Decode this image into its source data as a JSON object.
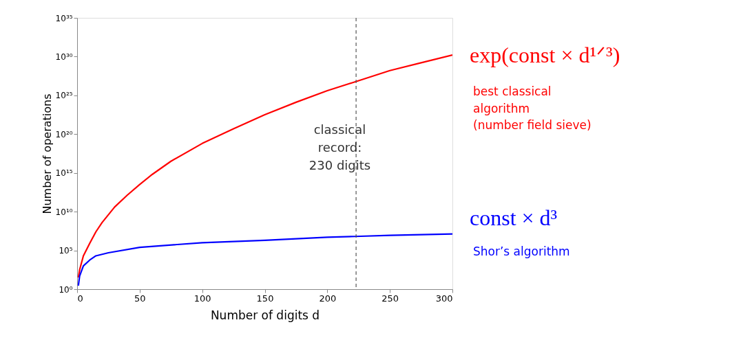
{
  "chart_data": {
    "type": "line",
    "xlabel": "Number of digits d",
    "ylabel": "Number of operations",
    "log": "y",
    "grid": false,
    "marker": "none",
    "line_style": "solid",
    "xlim": [
      0,
      300
    ],
    "xticks": [
      0,
      50,
      100,
      150,
      200,
      250,
      300
    ],
    "ylim": [
      1,
      1e+35
    ],
    "yticks": [
      {
        "value": 1,
        "label": "10⁰"
      },
      {
        "value": 100000.0,
        "label": "10⁵"
      },
      {
        "value": 10000000000.0,
        "label": "10¹⁰"
      },
      {
        "value": 1000000000000000.0,
        "label": "10¹⁵"
      },
      {
        "value": 1e+20,
        "label": "10²⁰"
      },
      {
        "value": 1e+25,
        "label": "10²⁵"
      },
      {
        "value": 1e+30,
        "label": "10³⁰"
      },
      {
        "value": 1e+35,
        "label": "10³⁵"
      }
    ],
    "series": [
      {
        "name": "exp(const × d¹ᐟ³)",
        "color": "#ff0000",
        "x": [
          1,
          2,
          5,
          10,
          15,
          20,
          30,
          40,
          50,
          60,
          75,
          100,
          125,
          150,
          175,
          200,
          225,
          250,
          275,
          300
        ],
        "values": [
          32,
          320,
          20000.0,
          790000.0,
          25000000.0,
          400000000.0,
          40000000000.0,
          1300000000000.0,
          32000000000000.0,
          630000000000000.0,
          3.2e+16,
          6.3e+18,
          5e+20,
          3.2e+22,
          1.3e+24,
          4e+25,
          7.9e+26,
          1.6e+28,
          1.6e+29,
          1.6e+30
        ]
      },
      {
        "name": "const × d³",
        "color": "#0000ff",
        "x": [
          1,
          2,
          5,
          10,
          15,
          25,
          50,
          100,
          150,
          200,
          222,
          250,
          300
        ],
        "values": [
          2.8,
          50,
          1000.0,
          5600.0,
          20000.0,
          50000.0,
          250000.0,
          1000000.0,
          2000000.0,
          5000000.0,
          6300000.0,
          8900000.0,
          13500000.0
        ]
      }
    ],
    "ref_lines": [
      {
        "axis": "x",
        "value": 223,
        "label": null,
        "color": "#555555",
        "line_style": "dashed"
      }
    ],
    "annotations": [
      "classical\nrecord:\n230 digits",
      "best classical\nalgorithm\n(number field sieve)",
      "Shor’s algorithm"
    ]
  }
}
